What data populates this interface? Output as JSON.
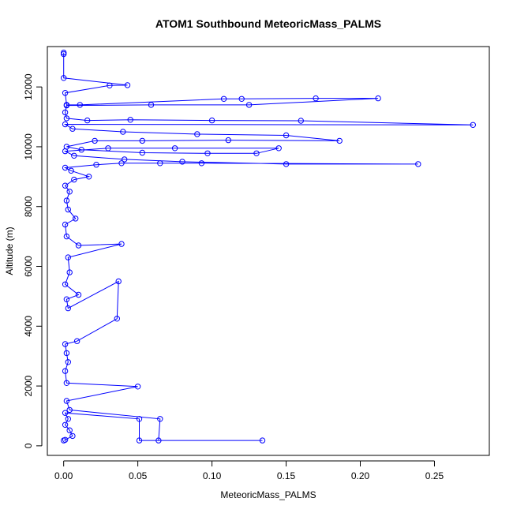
{
  "chart_data": {
    "type": "line",
    "title": "ATOM1 Southbound MeteoricMass_PALMS",
    "xlabel": "MeteoricMass_PALMS",
    "ylabel": "Altitude (m)",
    "xlim": [
      -0.011,
      0.287
    ],
    "ylim": [
      -320,
      13350
    ],
    "xticks": [
      0.0,
      0.05,
      0.1,
      0.15,
      0.2,
      0.25
    ],
    "xtick_labels": [
      "0.00",
      "0.05",
      "0.10",
      "0.15",
      "0.20",
      "0.25"
    ],
    "yticks": [
      0,
      2000,
      4000,
      6000,
      8000,
      10000,
      12000
    ],
    "yticks_labels": [
      "0",
      "2000",
      "4000",
      "6000",
      "8000",
      "10000",
      "12000"
    ],
    "grid": false,
    "legend": "none",
    "series": [
      {
        "color": "#0000ff",
        "marker": "open-circle",
        "points": [
          [
            0.0,
            180
          ],
          [
            0.001,
            200
          ],
          [
            0.006,
            330
          ],
          [
            0.004,
            520
          ],
          [
            0.001,
            700
          ],
          [
            0.003,
            900
          ],
          [
            0.001,
            1100
          ],
          [
            0.051,
            900
          ],
          [
            0.051,
            180
          ],
          [
            0.134,
            180
          ],
          [
            0.064,
            180
          ],
          [
            0.065,
            900
          ],
          [
            0.004,
            1200
          ],
          [
            0.002,
            1500
          ],
          [
            0.05,
            1980
          ],
          [
            0.002,
            2100
          ],
          [
            0.001,
            2500
          ],
          [
            0.003,
            2800
          ],
          [
            0.002,
            3100
          ],
          [
            0.001,
            3400
          ],
          [
            0.009,
            3500
          ],
          [
            0.036,
            4250
          ],
          [
            0.037,
            5500
          ],
          [
            0.003,
            4600
          ],
          [
            0.002,
            4900
          ],
          [
            0.01,
            5050
          ],
          [
            0.001,
            5400
          ],
          [
            0.004,
            5800
          ],
          [
            0.003,
            6300
          ],
          [
            0.039,
            6750
          ],
          [
            0.01,
            6700
          ],
          [
            0.002,
            7000
          ],
          [
            0.001,
            7400
          ],
          [
            0.008,
            7600
          ],
          [
            0.003,
            7900
          ],
          [
            0.002,
            8200
          ],
          [
            0.004,
            8500
          ],
          [
            0.001,
            8700
          ],
          [
            0.007,
            8900
          ],
          [
            0.017,
            9000
          ],
          [
            0.005,
            9200
          ],
          [
            0.001,
            9300
          ],
          [
            0.022,
            9400
          ],
          [
            0.039,
            9450
          ],
          [
            0.065,
            9450
          ],
          [
            0.093,
            9450
          ],
          [
            0.239,
            9420
          ],
          [
            0.15,
            9420
          ],
          [
            0.08,
            9500
          ],
          [
            0.041,
            9580
          ],
          [
            0.007,
            9700
          ],
          [
            0.001,
            9850
          ],
          [
            0.03,
            9950
          ],
          [
            0.075,
            9950
          ],
          [
            0.145,
            9950
          ],
          [
            0.13,
            9780
          ],
          [
            0.097,
            9780
          ],
          [
            0.053,
            9800
          ],
          [
            0.012,
            9900
          ],
          [
            0.002,
            10000
          ],
          [
            0.021,
            10200
          ],
          [
            0.053,
            10200
          ],
          [
            0.111,
            10220
          ],
          [
            0.186,
            10200
          ],
          [
            0.15,
            10380
          ],
          [
            0.09,
            10420
          ],
          [
            0.04,
            10500
          ],
          [
            0.006,
            10600
          ],
          [
            0.001,
            10750
          ],
          [
            0.276,
            10730
          ],
          [
            0.16,
            10870
          ],
          [
            0.1,
            10880
          ],
          [
            0.045,
            10900
          ],
          [
            0.016,
            10880
          ],
          [
            0.002,
            10950
          ],
          [
            0.001,
            11150
          ],
          [
            0.002,
            11380
          ],
          [
            0.059,
            11400
          ],
          [
            0.125,
            11400
          ],
          [
            0.212,
            11620
          ],
          [
            0.17,
            11620
          ],
          [
            0.12,
            11600
          ],
          [
            0.108,
            11600
          ],
          [
            0.011,
            11400
          ],
          [
            0.002,
            11400
          ],
          [
            0.001,
            11800
          ],
          [
            0.031,
            12050
          ],
          [
            0.043,
            12060
          ],
          [
            0.0,
            12300
          ],
          [
            0.0,
            13100
          ],
          [
            0.0,
            13150
          ]
        ]
      }
    ]
  }
}
